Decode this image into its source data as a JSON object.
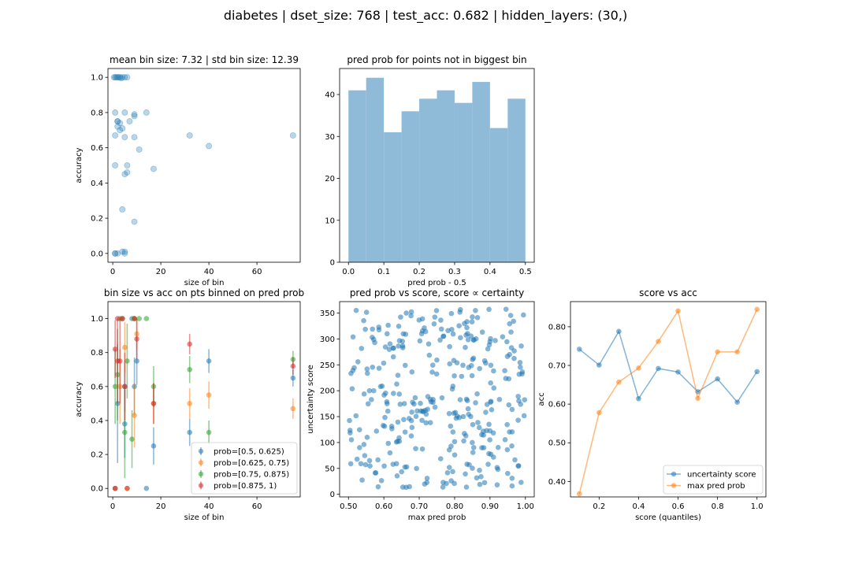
{
  "figure": {
    "suptitle": "diabetes | dset_size: 768 | test_acc: 0.682 | hidden_layers: (30,)"
  },
  "colors": {
    "blue": "#1f77b4",
    "orange": "#ff7f0e",
    "green": "#2ca02c",
    "red": "#d62728",
    "hist": "#8fbbd9"
  },
  "chart_data": [
    {
      "type": "scatter",
      "title": "mean bin size: 7.32 | std bin size: 12.39",
      "xlabel": "size of bin",
      "ylabel": "accuracy",
      "xlim": [
        -2,
        78
      ],
      "ylim": [
        -0.05,
        1.05
      ],
      "xticks": [
        0,
        20,
        40,
        60
      ],
      "yticks": [
        0.0,
        0.2,
        0.4,
        0.6,
        0.8,
        1.0
      ],
      "series": [
        {
          "x": [
            0.5,
            1,
            1.5,
            2,
            2.5,
            3,
            3.5,
            4,
            5,
            6,
            1,
            2,
            3,
            5,
            9,
            1,
            2,
            4,
            2,
            3,
            5,
            7,
            9,
            1,
            6,
            9,
            11,
            14,
            32,
            40,
            75,
            1,
            5,
            5,
            6,
            17,
            4,
            9,
            1,
            2,
            4,
            5
          ],
          "y": [
            1.0,
            1.0,
            1.0,
            1.0,
            1.0,
            1.0,
            0.995,
            1.0,
            1.0,
            1.0,
            0.8,
            0.75,
            0.74,
            0.8,
            0.78,
            0.67,
            0.72,
            0.71,
            0.75,
            0.7,
            0.66,
            0.75,
            0.66,
            0.5,
            0.5,
            0.79,
            0.59,
            0.8,
            0.67,
            0.61,
            0.67,
            0.0,
            0.0,
            0.45,
            0.46,
            0.48,
            0.25,
            0.18,
            0.0,
            0.0,
            0.01,
            0.01
          ]
        }
      ]
    },
    {
      "type": "bar",
      "title": "pred prob for points not in biggest bin",
      "xlabel": "pred prob - 0.5",
      "ylabel": "",
      "xlim": [
        -0.025,
        0.525
      ],
      "ylim": [
        0,
        46.2
      ],
      "xticks": [
        0.0,
        0.1,
        0.2,
        0.3,
        0.4,
        0.5
      ],
      "yticks": [
        0,
        10,
        20,
        30,
        40
      ],
      "bin_edges": [
        0.0,
        0.05,
        0.1,
        0.15,
        0.2,
        0.25,
        0.3,
        0.35,
        0.4,
        0.45,
        0.5
      ],
      "values": [
        41,
        44,
        31,
        36,
        39,
        41,
        38,
        43,
        32,
        39
      ]
    },
    {
      "type": "scatter",
      "title": "bin size vs acc on pts binned on pred prob",
      "xlabel": "size of bin",
      "ylabel": "accuracy",
      "xlim": [
        -2,
        78
      ],
      "ylim": [
        -0.05,
        1.1
      ],
      "xticks": [
        0,
        20,
        40,
        60
      ],
      "yticks": [
        0.0,
        0.2,
        0.4,
        0.6,
        0.8,
        1.0
      ],
      "legend": "lower-right",
      "series": [
        {
          "name": "prob=[0.5, 0.625)",
          "color": "blue",
          "x": [
            1,
            2,
            4,
            5,
            5,
            8,
            9,
            10,
            14,
            17,
            32,
            40,
            75
          ],
          "y": [
            0.0,
            0.5,
            1.0,
            0.38,
            0.6,
            1.0,
            0.6,
            0.75,
            0.0,
            0.25,
            0.33,
            0.75,
            0.65
          ],
          "err": [
            0.0,
            0.35,
            0.0,
            0.2,
            0.15,
            0.0,
            0.17,
            0.14,
            0.0,
            0.11,
            0.08,
            0.07,
            0.05
          ]
        },
        {
          "name": "prob=[0.625, 0.75)",
          "color": "orange",
          "x": [
            1,
            3,
            4,
            5,
            6,
            9,
            9,
            10,
            17,
            32,
            40,
            75
          ],
          "y": [
            0.0,
            0.6,
            1.0,
            0.83,
            0.0,
            0.43,
            1.0,
            0.91,
            0.5,
            0.5,
            0.55,
            0.47
          ],
          "err": [
            0.0,
            0.22,
            0.0,
            0.15,
            0.0,
            0.19,
            0.0,
            0.09,
            0.12,
            0.09,
            0.08,
            0.06
          ]
        },
        {
          "name": "prob=[0.75, 0.875)",
          "color": "green",
          "x": [
            1,
            2,
            3,
            5,
            6,
            8,
            9,
            11,
            14,
            17,
            32,
            40,
            75
          ],
          "y": [
            0.6,
            0.67,
            1.0,
            0.33,
            0.75,
            0.29,
            1.0,
            1.0,
            1.0,
            0.6,
            0.7,
            0.33,
            0.76
          ],
          "err": [
            0.22,
            0.27,
            0.0,
            0.27,
            0.22,
            0.17,
            0.0,
            0.0,
            0.0,
            0.12,
            0.08,
            0.07,
            0.05
          ]
        },
        {
          "name": "prob=[0.875, 1)",
          "color": "red",
          "x": [
            1,
            1,
            2,
            2,
            3,
            4,
            5,
            6,
            9,
            10,
            17,
            32,
            75
          ],
          "y": [
            0.82,
            0.0,
            0.75,
            1.0,
            0.75,
            1.0,
            0.6,
            0.0,
            1.0,
            0.88,
            0.5,
            0.85,
            0.72
          ],
          "err": [
            0.17,
            0.0,
            0.25,
            0.0,
            0.25,
            0.0,
            0.2,
            0.0,
            0.0,
            0.12,
            0.12,
            0.06,
            0.05
          ]
        }
      ]
    },
    {
      "type": "scatter",
      "title": "pred prob vs score, score ∝ certainty",
      "xlabel": "max pred prob",
      "ylabel": "uncertainty score",
      "xlim": [
        0.475,
        1.025
      ],
      "ylim": [
        -5,
        372
      ],
      "xticks": [
        0.5,
        0.6,
        0.7,
        0.8,
        0.9,
        1.0
      ],
      "yticks": [
        0,
        50,
        100,
        150,
        200,
        250,
        300,
        350
      ],
      "n_points": 330
    },
    {
      "type": "line",
      "title": "score vs acc",
      "xlabel": "score (quantiles)",
      "ylabel": "acc",
      "xlim": [
        0.055,
        1.045
      ],
      "ylim": [
        0.36,
        0.865
      ],
      "xticks": [
        0.2,
        0.4,
        0.6,
        0.8,
        1.0
      ],
      "yticks": [
        0.4,
        0.5,
        0.6,
        0.7,
        0.8
      ],
      "legend": "lower-right",
      "x": [
        0.1,
        0.2,
        0.3,
        0.4,
        0.5,
        0.6,
        0.7,
        0.8,
        0.9,
        1.0
      ],
      "series": [
        {
          "name": "uncertainty score",
          "color": "blue",
          "values": [
            0.742,
            0.701,
            0.788,
            0.614,
            0.692,
            0.683,
            0.632,
            0.665,
            0.605,
            0.684
          ]
        },
        {
          "name": "max pred prob",
          "color": "orange",
          "values": [
            0.368,
            0.578,
            0.657,
            0.693,
            0.762,
            0.841,
            0.615,
            0.735,
            0.735,
            0.845
          ]
        }
      ]
    }
  ]
}
